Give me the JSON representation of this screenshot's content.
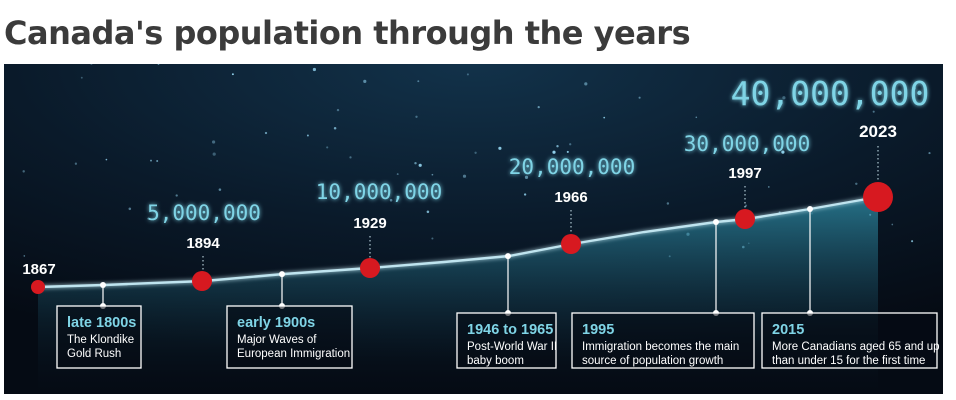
{
  "page": {
    "title": "Canada's population through the years"
  },
  "colors": {
    "background": "#0a1420",
    "milestone_dot": "#d71920",
    "growth_line": "#bfe4ef",
    "population_text": "#7fd4e6",
    "label_text": "#ffffff"
  },
  "chart_data": {
    "type": "line",
    "title": "Canada's population through the years",
    "xlabel": "",
    "ylabel": "",
    "milestones": [
      {
        "year": "1867",
        "population_label": "",
        "size": "small"
      },
      {
        "year": "1894",
        "population_label": "5,000,000",
        "size": "medium"
      },
      {
        "year": "1929",
        "population_label": "10,000,000",
        "size": "medium"
      },
      {
        "year": "1966",
        "population_label": "20,000,000",
        "size": "medium"
      },
      {
        "year": "1997",
        "population_label": "30,000,000",
        "size": "medium"
      },
      {
        "year": "2023",
        "population_label": "40,000,000",
        "size": "large"
      }
    ],
    "events": [
      {
        "title": "late 1800s",
        "lines": [
          "The Klondike",
          "Gold Rush"
        ]
      },
      {
        "title": "early 1900s",
        "lines": [
          "Major Waves of",
          "European Immigration"
        ]
      },
      {
        "title": "1946 to 1965",
        "lines": [
          "Post-World War II",
          "baby boom"
        ]
      },
      {
        "title": "1995",
        "lines": [
          "Immigration becomes the main",
          "source of population growth"
        ]
      },
      {
        "title": "2015",
        "lines": [
          "More Canadians aged 65 and up",
          "than under 15 for the first time"
        ]
      }
    ]
  }
}
